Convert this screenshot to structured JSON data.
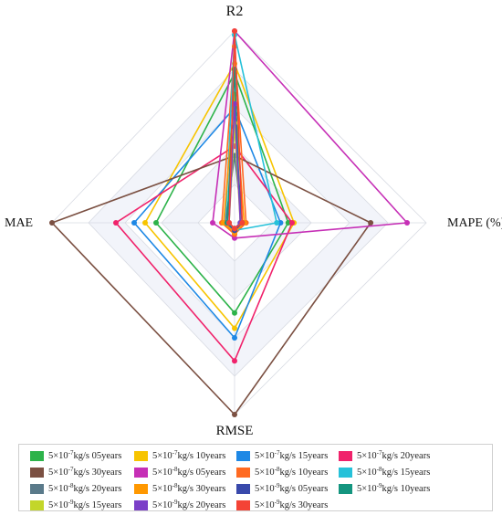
{
  "chart_data": {
    "type": "radar",
    "axes": [
      "R2",
      "MAPE (%)",
      "RMSE",
      "MAE"
    ],
    "series": [
      {
        "name": "5×10⁻⁷kg/s 05years",
        "color": "#2db34a",
        "values": [
          0.78,
          0.28,
          0.47,
          0.43
        ]
      },
      {
        "name": "5×10⁻⁷kg/s 10years",
        "color": "#f7c400",
        "values": [
          0.83,
          0.31,
          0.55,
          0.49
        ]
      },
      {
        "name": "5×10⁻⁷kg/s 15years",
        "color": "#1e88e5",
        "values": [
          0.6,
          0.24,
          0.6,
          0.55
        ]
      },
      {
        "name": "5×10⁻⁷kg/s 20years",
        "color": "#f0226b",
        "values": [
          0.4,
          0.3,
          0.72,
          0.65
        ]
      },
      {
        "name": "5×10⁻⁷kg/s 30years",
        "color": "#7b5042",
        "values": [
          0.35,
          0.71,
          1.0,
          1.0
        ]
      },
      {
        "name": "5×10⁻⁸kg/s 05years",
        "color": "#c62fb6",
        "values": [
          1.0,
          0.9,
          0.08,
          0.12
        ]
      },
      {
        "name": "5×10⁻⁸kg/s 10years",
        "color": "#ff6a21",
        "values": [
          0.92,
          0.06,
          0.06,
          0.07
        ]
      },
      {
        "name": "5×10⁻⁸kg/s 15years",
        "color": "#26c1d9",
        "values": [
          0.98,
          0.22,
          0.04,
          0.05
        ]
      },
      {
        "name": "5×10⁻⁸kg/s 20years",
        "color": "#5a7a8a",
        "values": [
          0.35,
          0.04,
          0.04,
          0.05
        ]
      },
      {
        "name": "5×10⁻⁸kg/s 30years",
        "color": "#ff9800",
        "values": [
          0.67,
          0.05,
          0.05,
          0.06
        ]
      },
      {
        "name": "5×10⁻⁹kg/s 05years",
        "color": "#3949ab",
        "values": [
          0.5,
          0.04,
          0.04,
          0.04
        ]
      },
      {
        "name": "5×10⁻⁹kg/s 10years",
        "color": "#14957f",
        "values": [
          0.8,
          0.03,
          0.03,
          0.04
        ]
      },
      {
        "name": "5×10⁻⁹kg/s 15years",
        "color": "#c3d62a",
        "values": [
          0.52,
          0.03,
          0.03,
          0.03
        ]
      },
      {
        "name": "5×10⁻⁹kg/s 20years",
        "color": "#7b3fc8",
        "values": [
          0.62,
          0.03,
          0.03,
          0.03
        ]
      },
      {
        "name": "5×10⁻⁹kg/s 30years",
        "color": "#f44336",
        "values": [
          1.0,
          0.04,
          0.03,
          0.03
        ]
      }
    ],
    "legend": [
      {
        "base": "5×10",
        "exp": "-7",
        "rest": "kg/s 05years",
        "color": "#2db34a"
      },
      {
        "base": "5×10",
        "exp": "-7",
        "rest": "kg/s 10years",
        "color": "#f7c400"
      },
      {
        "base": "5×10",
        "exp": "-7",
        "rest": "kg/s 15years",
        "color": "#1e88e5"
      },
      {
        "base": "5×10",
        "exp": "-7",
        "rest": "kg/s 20years",
        "color": "#f0226b"
      },
      {
        "base": "5×10",
        "exp": "-7",
        "rest": "kg/s 30years",
        "color": "#7b5042"
      },
      {
        "base": "5×10",
        "exp": "-8",
        "rest": "kg/s 05years",
        "color": "#c62fb6"
      },
      {
        "base": "5×10",
        "exp": "-8",
        "rest": "kg/s 10years",
        "color": "#ff6a21"
      },
      {
        "base": "5×10",
        "exp": "-8",
        "rest": "kg/s 15years",
        "color": "#26c1d9"
      },
      {
        "base": "5×10",
        "exp": "-8",
        "rest": "kg/s 20years",
        "color": "#5a7a8a"
      },
      {
        "base": "5×10",
        "exp": "-8",
        "rest": "kg/s 30years",
        "color": "#ff9800"
      },
      {
        "base": "5×10",
        "exp": "-9",
        "rest": "kg/s 05years",
        "color": "#3949ab"
      },
      {
        "base": "5×10",
        "exp": "-9",
        "rest": "kg/s 10years",
        "color": "#14957f"
      },
      {
        "base": "5×10",
        "exp": "-9",
        "rest": "kg/s 15years",
        "color": "#c3d62a"
      },
      {
        "base": "5×10",
        "exp": "-9",
        "rest": "kg/s 20years",
        "color": "#7b3fc8"
      },
      {
        "base": "5×10",
        "exp": "-9",
        "rest": "kg/s 30years",
        "color": "#f44336"
      }
    ],
    "grid": true,
    "legend_position": "bottom"
  }
}
